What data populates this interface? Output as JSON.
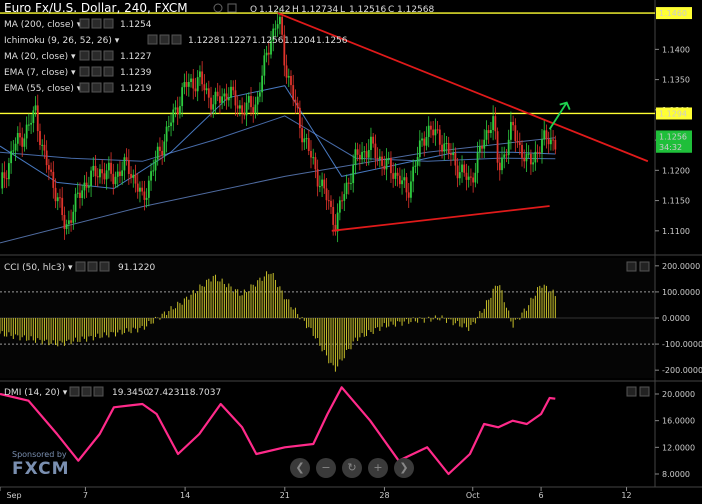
{
  "header": {
    "title": "Euro Fx/U.S. Dollar, 240, FXCM",
    "o_label": "O",
    "o_value": "1.1242",
    "h_label": "H",
    "h_value": "1.12734",
    "l_label": "L",
    "l_value": "1.12516",
    "c_label": "C",
    "c_value": "1.12568"
  },
  "indicators": [
    {
      "label": "MA (200, close)",
      "values": [
        "1.1254"
      ],
      "colors": [
        "#6a8fd6"
      ]
    },
    {
      "label": "Ichimoku (9, 26, 52, 26)",
      "values": [
        "1.1228",
        "1.1227",
        "1.1256",
        "1.1204",
        "1.1256"
      ],
      "colors": [
        "#5fa0ff",
        "#d0342c",
        "#5fd35f",
        "#5fd35f",
        "#d0342c"
      ]
    },
    {
      "label": "MA (20, close)",
      "values": [
        "1.1227"
      ],
      "colors": [
        "#5fa0ff"
      ]
    },
    {
      "label": "EMA (7, close)",
      "values": [
        "1.1239"
      ],
      "colors": [
        "#5fa0ff"
      ]
    },
    {
      "label": "EMA (55, close)",
      "values": [
        "1.1219"
      ],
      "colors": [
        "#5fa0ff"
      ]
    }
  ],
  "price_axis": {
    "ticks": [
      "1.1400",
      "1.1350",
      "1.1300",
      "1.1250",
      "1.1200",
      "1.1150",
      "1.1100"
    ],
    "tick_values": [
      1.14,
      1.135,
      1.13,
      1.125,
      1.12,
      1.115,
      1.11
    ],
    "tags": [
      {
        "text": "1.1460",
        "value": 1.146,
        "bg": "#ffff33"
      },
      {
        "text": "1.1294",
        "value": 1.1294,
        "bg": "#ffff33"
      },
      {
        "text": "1.1256",
        "value": 1.1256,
        "bg": "#1fbf3a"
      },
      {
        "text": "34:32",
        "value": 1.1239,
        "bg": "#1fbf3a"
      }
    ]
  },
  "cci": {
    "label": "CCI (50, hlc3)",
    "value": "91.1220",
    "ticks": [
      "200.0000",
      "100.0000",
      "0.0000",
      "-100.0000",
      "-200.0000"
    ],
    "tick_values": [
      200,
      100,
      0,
      -100,
      -200
    ]
  },
  "dmi": {
    "label": "DMI (14, 20)",
    "values": [
      "19.3450",
      "27.4231",
      "18.7037"
    ],
    "colors": [
      "#ff3399",
      "#5fa0ff",
      "#ff3399"
    ],
    "ticks": [
      "20.0000",
      "16.0000",
      "12.0000",
      "8.0000"
    ],
    "tick_values": [
      20,
      16,
      12,
      8
    ]
  },
  "x_axis": {
    "labels": [
      "Sep",
      "7",
      "14",
      "21",
      "28",
      "Oct",
      "6",
      "12"
    ],
    "positions": [
      0,
      6,
      13,
      20,
      27,
      33.2,
      38,
      44
    ]
  },
  "branding": {
    "sponsor": "Sponsored by",
    "brand": "FXCM"
  },
  "chart_data": [
    {
      "type": "candlestick",
      "title": "Euro Fx/U.S. Dollar, 240, FXCM",
      "ylim": [
        1.1065,
        1.1475
      ],
      "horizontal_lines": [
        1.146,
        1.1294
      ],
      "trendlines": [
        {
          "from": [
            19.5,
            1.146
          ],
          "to": [
            45.5,
            1.1215
          ],
          "color": "#e01a1a"
        },
        {
          "from": [
            23.3,
            1.11
          ],
          "to": [
            38.6,
            1.1141
          ],
          "color": "#e01a1a"
        }
      ],
      "arrow": {
        "from": [
          38.6,
          1.1268
        ],
        "to": [
          39.8,
          1.1312
        ],
        "color": "#1fd34f"
      },
      "close_path": [
        [
          0,
          1.117
        ],
        [
          1,
          1.124
        ],
        [
          2,
          1.127
        ],
        [
          2.5,
          1.13
        ],
        [
          3,
          1.123
        ],
        [
          4,
          1.116
        ],
        [
          4.6,
          1.11
        ],
        [
          5,
          1.113
        ],
        [
          6,
          1.118
        ],
        [
          7,
          1.12
        ],
        [
          8,
          1.119
        ],
        [
          9,
          1.121
        ],
        [
          10,
          1.115
        ],
        [
          11,
          1.122
        ],
        [
          12,
          1.128
        ],
        [
          13,
          1.134
        ],
        [
          14,
          1.135
        ],
        [
          15,
          1.131
        ],
        [
          16,
          1.133
        ],
        [
          17,
          1.13
        ],
        [
          18,
          1.131
        ],
        [
          19,
          1.142
        ],
        [
          19.6,
          1.145
        ],
        [
          20,
          1.138
        ],
        [
          21,
          1.128
        ],
        [
          22,
          1.121
        ],
        [
          23,
          1.115
        ],
        [
          23.6,
          1.111
        ],
        [
          24,
          1.115
        ],
        [
          25,
          1.122
        ],
        [
          26,
          1.124
        ],
        [
          27,
          1.121
        ],
        [
          28,
          1.119
        ],
        [
          28.6,
          1.116
        ],
        [
          29,
          1.12
        ],
        [
          30,
          1.127
        ],
        [
          31,
          1.125
        ],
        [
          32,
          1.121
        ],
        [
          33,
          1.118
        ],
        [
          34,
          1.125
        ],
        [
          34.6,
          1.129
        ],
        [
          35,
          1.12
        ],
        [
          36,
          1.127
        ],
        [
          37,
          1.121
        ],
        [
          38,
          1.124
        ],
        [
          38.5,
          1.126
        ],
        [
          39,
          1.124
        ]
      ],
      "ma_paths": [
        {
          "name": "MA (200, close)",
          "color": "#6a8fd6",
          "points": [
            [
              0,
              1.108
            ],
            [
              10,
              1.114
            ],
            [
              20,
              1.119
            ],
            [
              30,
              1.123
            ],
            [
              39,
              1.1254
            ]
          ]
        },
        {
          "name": "EMA (55, close)",
          "color": "#5f8fe0",
          "points": [
            [
              0,
              1.123
            ],
            [
              5,
              1.122
            ],
            [
              10,
              1.1215
            ],
            [
              15,
              1.125
            ],
            [
              20,
              1.129
            ],
            [
              25,
              1.122
            ],
            [
              30,
              1.1215
            ],
            [
              35,
              1.122
            ],
            [
              39,
              1.1219
            ]
          ]
        },
        {
          "name": "MA (20, close)",
          "color": "#5fa0ff",
          "points": [
            [
              0,
              1.124
            ],
            [
              4,
              1.118
            ],
            [
              8,
              1.117
            ],
            [
              12,
              1.123
            ],
            [
              16,
              1.132
            ],
            [
              20,
              1.134
            ],
            [
              24,
              1.119
            ],
            [
              28,
              1.121
            ],
            [
              32,
              1.123
            ],
            [
              36,
              1.123
            ],
            [
              39,
              1.1227
            ]
          ]
        }
      ]
    },
    {
      "type": "bar",
      "title": "CCI (50, hlc3)",
      "ylim": [
        -230,
        230
      ],
      "reference_lines": [
        100,
        -100
      ],
      "points": [
        [
          0,
          -60
        ],
        [
          4,
          -100
        ],
        [
          7,
          -70
        ],
        [
          10,
          -40
        ],
        [
          13,
          70
        ],
        [
          15,
          160
        ],
        [
          17,
          90
        ],
        [
          19,
          180
        ],
        [
          20,
          80
        ],
        [
          22,
          -60
        ],
        [
          23.5,
          -200
        ],
        [
          25,
          -80
        ],
        [
          27,
          -30
        ],
        [
          29,
          -10
        ],
        [
          31,
          0
        ],
        [
          33,
          -40
        ],
        [
          34,
          40
        ],
        [
          35,
          140
        ],
        [
          36,
          -30
        ],
        [
          37,
          40
        ],
        [
          38,
          130
        ],
        [
          39,
          91.1
        ]
      ]
    },
    {
      "type": "line",
      "title": "DMI (14, 20)",
      "ylim": [
        6.5,
        21.5
      ],
      "color": "#ff2a8a",
      "points": [
        [
          0,
          20
        ],
        [
          2,
          19
        ],
        [
          4,
          14
        ],
        [
          5.5,
          10
        ],
        [
          7,
          14
        ],
        [
          8,
          18
        ],
        [
          10,
          18.5
        ],
        [
          11,
          17
        ],
        [
          12.5,
          11
        ],
        [
          14,
          14
        ],
        [
          15.5,
          18.5
        ],
        [
          17,
          15
        ],
        [
          18,
          11
        ],
        [
          20,
          12
        ],
        [
          22,
          12.5
        ],
        [
          23,
          17
        ],
        [
          24,
          21
        ],
        [
          26,
          16
        ],
        [
          28,
          10
        ],
        [
          30,
          12
        ],
        [
          31.5,
          8
        ],
        [
          33,
          11
        ],
        [
          34,
          15.5
        ],
        [
          35,
          15
        ],
        [
          36,
          16
        ],
        [
          37,
          15.5
        ],
        [
          38,
          17
        ],
        [
          38.6,
          19.4
        ],
        [
          39,
          19.3
        ]
      ]
    }
  ]
}
